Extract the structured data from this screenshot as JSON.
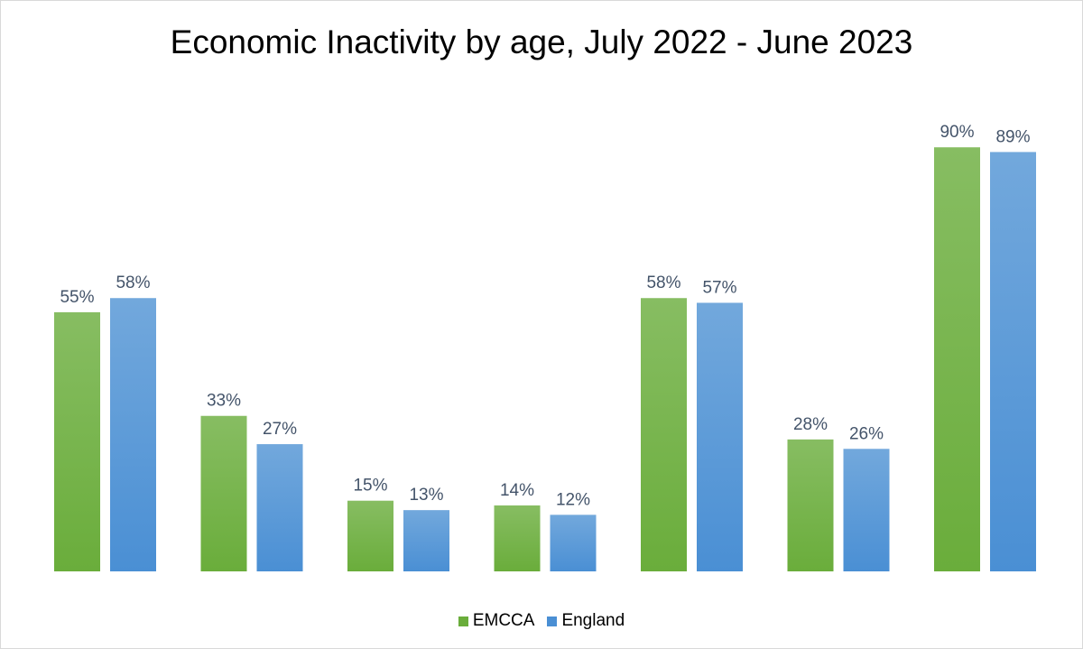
{
  "chart_data": {
    "type": "bar",
    "title": "Economic Inactivity by age, July 2022 - June 2023",
    "categories": [
      "",
      "",
      "",
      "",
      "",
      "",
      ""
    ],
    "series": [
      {
        "name": "EMCCA",
        "color": "#6aad3b",
        "color_light": "#87bd62",
        "values": [
          55,
          33,
          15,
          14,
          58,
          28,
          90
        ],
        "labels": [
          "55%",
          "33%",
          "15%",
          "14%",
          "58%",
          "28%",
          "90%"
        ]
      },
      {
        "name": "England",
        "color": "#4a8fd4",
        "color_light": "#72a8dc",
        "values": [
          58,
          27,
          13,
          12,
          57,
          26,
          89
        ],
        "labels": [
          "58%",
          "27%",
          "13%",
          "12%",
          "57%",
          "26%",
          "89%"
        ]
      }
    ],
    "ylim": [
      0,
      90
    ],
    "unit": "%",
    "grid": false,
    "legend_position": "bottom"
  }
}
